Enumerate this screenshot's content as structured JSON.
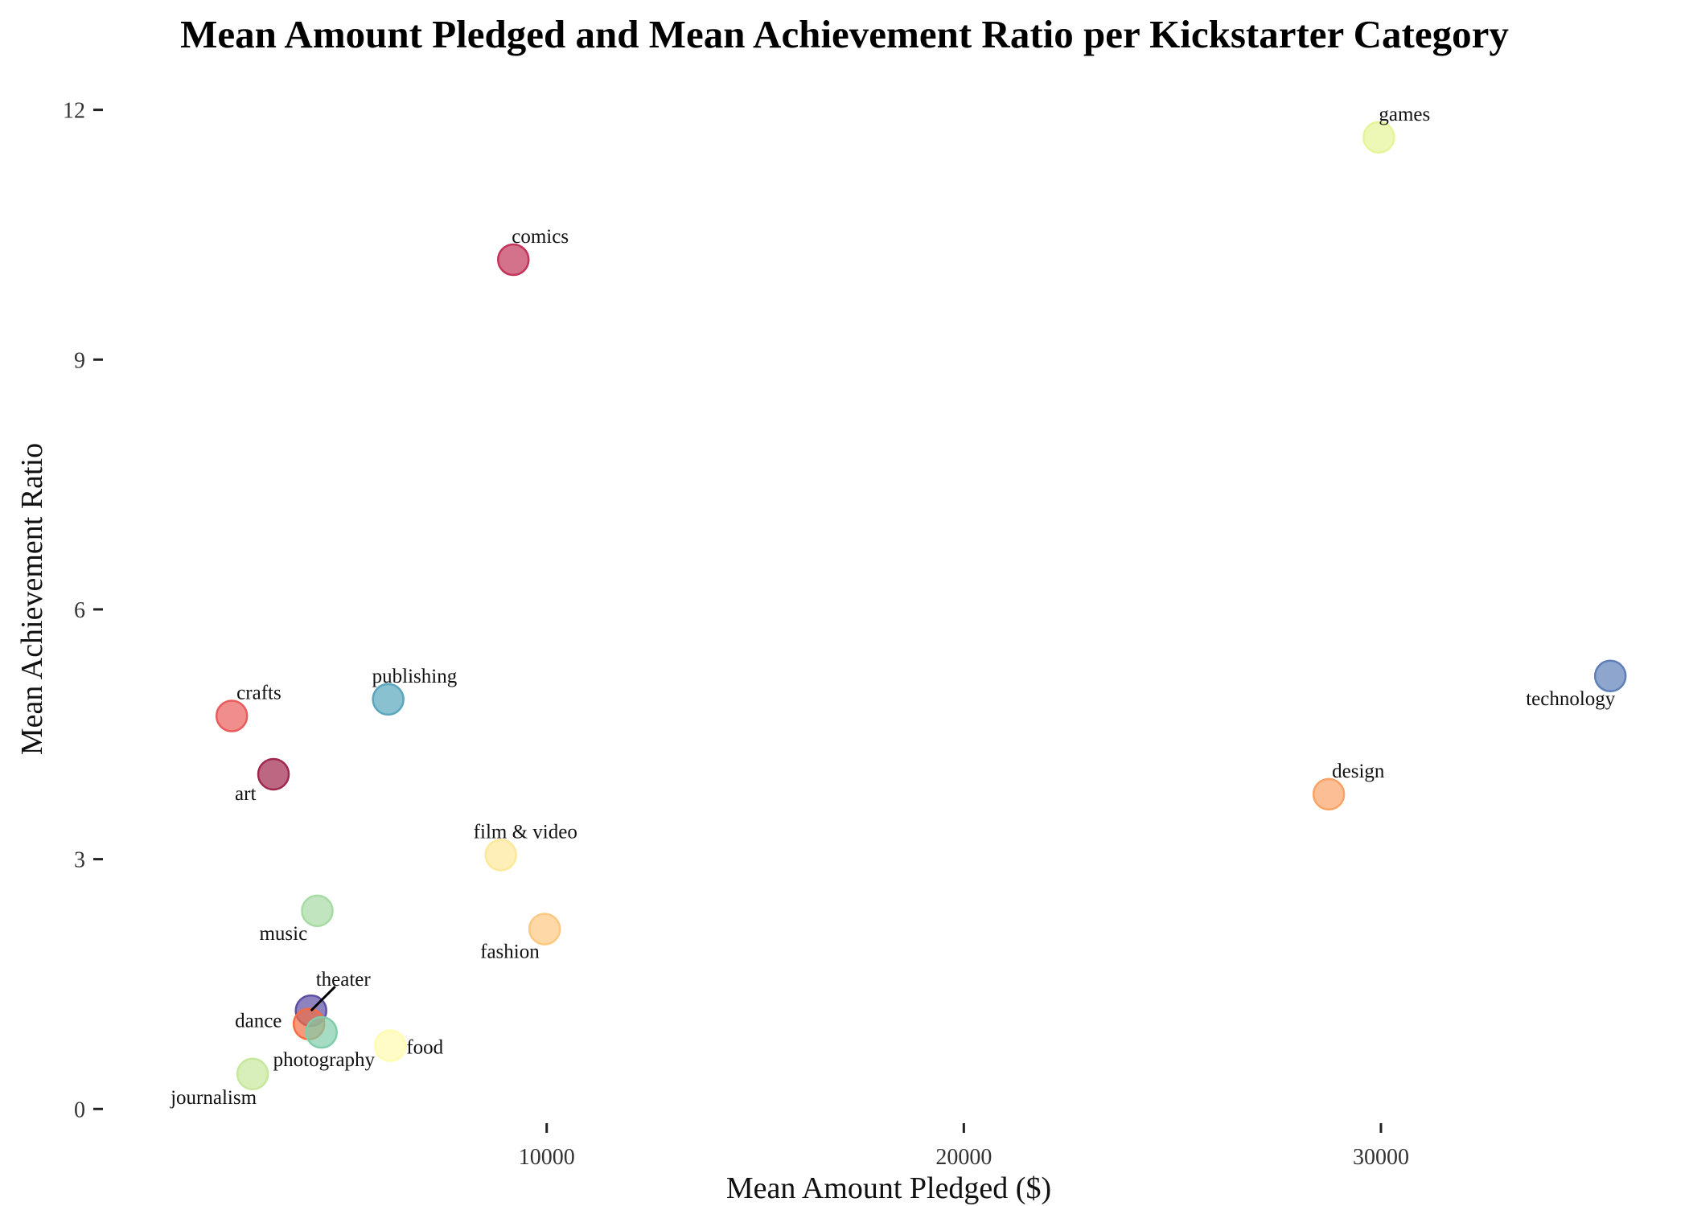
{
  "chart_data": {
    "type": "scatter",
    "title": "Mean Amount Pledged and Mean Achievement Ratio per Kickstarter Category",
    "xlabel": "Mean Amount Pledged ($)",
    "ylabel": "Mean Achievement Ratio",
    "xlim": [
      -600,
      37000
    ],
    "ylim": [
      -0.2,
      12.45
    ],
    "xticks": [
      10000,
      20000,
      30000
    ],
    "yticks": [
      0,
      3,
      6,
      9,
      12
    ],
    "grid": false,
    "legend": "none",
    "points": [
      {
        "label": "games",
        "x": 29950,
        "y": 11.67,
        "color": "#e6f598"
      },
      {
        "label": "comics",
        "x": 9200,
        "y": 10.2,
        "color": "#c2355a"
      },
      {
        "label": "technology",
        "x": 35500,
        "y": 5.2,
        "color": "#5e7fb8"
      },
      {
        "label": "publishing",
        "x": 6200,
        "y": 4.92,
        "color": "#59a6bd"
      },
      {
        "label": "crafts",
        "x": 2450,
        "y": 4.72,
        "color": "#e95c5c"
      },
      {
        "label": "art",
        "x": 3450,
        "y": 4.02,
        "color": "#a0284f"
      },
      {
        "label": "design",
        "x": 28750,
        "y": 3.78,
        "color": "#fba366"
      },
      {
        "label": "film & video",
        "x": 8900,
        "y": 3.05,
        "color": "#fee89a"
      },
      {
        "label": "music",
        "x": 4500,
        "y": 2.38,
        "color": "#a6dba4"
      },
      {
        "label": "fashion",
        "x": 9950,
        "y": 2.16,
        "color": "#fdc880"
      },
      {
        "label": "theater",
        "x": 4350,
        "y": 1.18,
        "color": "#5e4fa2"
      },
      {
        "label": "dance",
        "x": 4300,
        "y": 1.02,
        "color": "#f46d43"
      },
      {
        "label": "photography",
        "x": 4600,
        "y": 0.92,
        "color": "#7fcdaa"
      },
      {
        "label": "food",
        "x": 6250,
        "y": 0.76,
        "color": "#fffbb0"
      },
      {
        "label": "journalism",
        "x": 2950,
        "y": 0.42,
        "color": "#c7e89c"
      }
    ]
  }
}
